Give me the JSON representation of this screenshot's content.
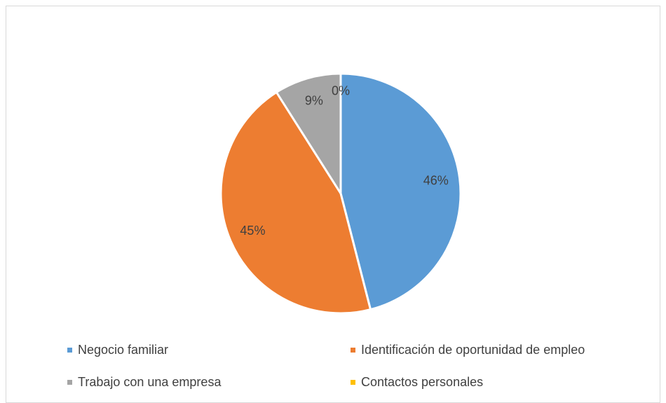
{
  "chart_data": {
    "type": "pie",
    "categories": [
      "Negocio familiar",
      "Identificación de oportunidad de empleo",
      "Trabajo con una empresa",
      "Contactos personales"
    ],
    "values": [
      46,
      45,
      9,
      0
    ],
    "value_labels": [
      "46%",
      "45%",
      "9%",
      "0%"
    ],
    "colors": [
      "#5b9bd5",
      "#ed7d31",
      "#a5a5a5",
      "#ffc000"
    ],
    "legend": "bottom"
  }
}
